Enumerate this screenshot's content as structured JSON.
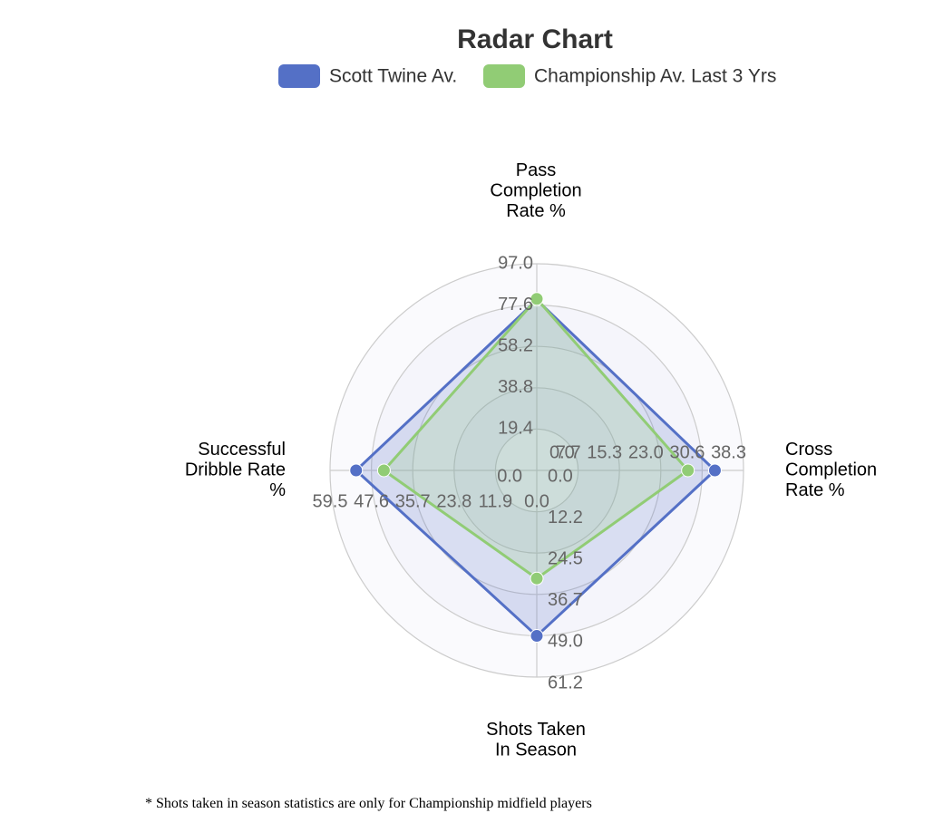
{
  "chart_data": {
    "type": "radar",
    "title": "Radar Chart",
    "legend_position": "top",
    "grid": true,
    "axes": [
      {
        "label": [
          "Pass",
          "Completion",
          "Rate %"
        ],
        "max": 97.0,
        "ticks": [
          "0.0",
          "19.4",
          "38.8",
          "58.2",
          "77.6",
          "97.0"
        ]
      },
      {
        "label": [
          "Cross",
          "Completion",
          "Rate %"
        ],
        "max": 38.3,
        "ticks": [
          "0.0",
          "7.7",
          "15.3",
          "23.0",
          "30.6",
          "38.3"
        ]
      },
      {
        "label": [
          "Shots Taken",
          "In Season"
        ],
        "max": 61.2,
        "ticks": [
          "0.0",
          "12.2",
          "24.5",
          "36.7",
          "49.0",
          "61.2"
        ]
      },
      {
        "label": [
          "Successful",
          "Dribble Rate",
          "%"
        ],
        "max": 59.5,
        "ticks": [
          "0.0",
          "11.9",
          "23.8",
          "35.7",
          "47.6",
          "59.5"
        ]
      }
    ],
    "series": [
      {
        "name": "Scott Twine Av.",
        "color": "#5470c6",
        "values": [
          80.0,
          33.0,
          49.0,
          52.0
        ]
      },
      {
        "name": "Championship Av. Last 3 Yrs",
        "color": "#91cc75",
        "values": [
          80.5,
          28.0,
          32.0,
          44.0
        ]
      }
    ]
  },
  "footnote": "* Shots taken in season statistics are only for Championship midfield players"
}
